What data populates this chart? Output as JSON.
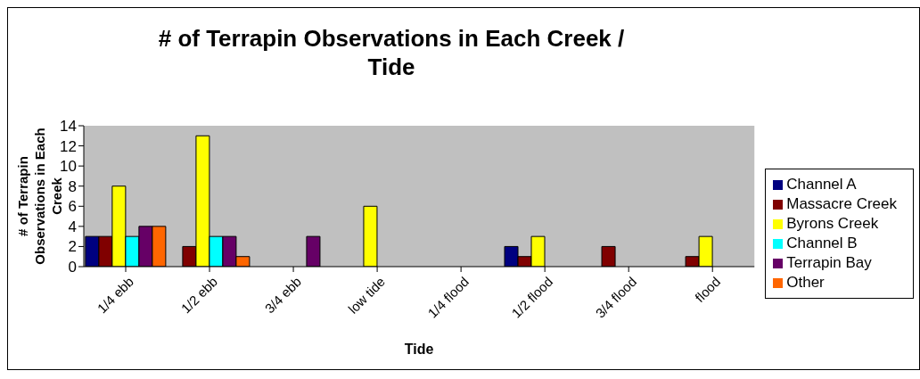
{
  "chart_data": {
    "type": "bar",
    "title": "# of Terrapin Observations in Each Creek / Tide",
    "xlabel": "Tide",
    "ylabel": "# of Terrapin Observations in Each Creek",
    "categories": [
      "1/4 ebb",
      "1/2 ebb",
      "3/4 ebb",
      "low tide",
      "1/4 flood",
      "1/2 flood",
      "3/4 flood",
      "flood"
    ],
    "series": [
      {
        "name": "Channel A",
        "color": "#000080",
        "values": [
          3,
          null,
          null,
          null,
          null,
          2,
          null,
          null
        ]
      },
      {
        "name": "Massacre Creek",
        "color": "#800000",
        "values": [
          3,
          2,
          null,
          null,
          null,
          1,
          2,
          1
        ]
      },
      {
        "name": "Byrons Creek",
        "color": "#ffff00",
        "values": [
          8,
          13,
          null,
          6,
          null,
          3,
          null,
          3
        ]
      },
      {
        "name": "Channel B",
        "color": "#00ffff",
        "values": [
          3,
          3,
          null,
          null,
          null,
          null,
          null,
          null
        ]
      },
      {
        "name": "Terrapin  Bay",
        "color": "#660066",
        "values": [
          4,
          3,
          3,
          null,
          null,
          null,
          null,
          null
        ]
      },
      {
        "name": "Other",
        "color": "#ff6600",
        "values": [
          4,
          1,
          null,
          null,
          null,
          null,
          null,
          null
        ]
      }
    ],
    "ylim": [
      0,
      14
    ],
    "yticks": [
      0,
      2,
      4,
      6,
      8,
      10,
      12,
      14
    ],
    "grid": false,
    "legend": "right"
  }
}
